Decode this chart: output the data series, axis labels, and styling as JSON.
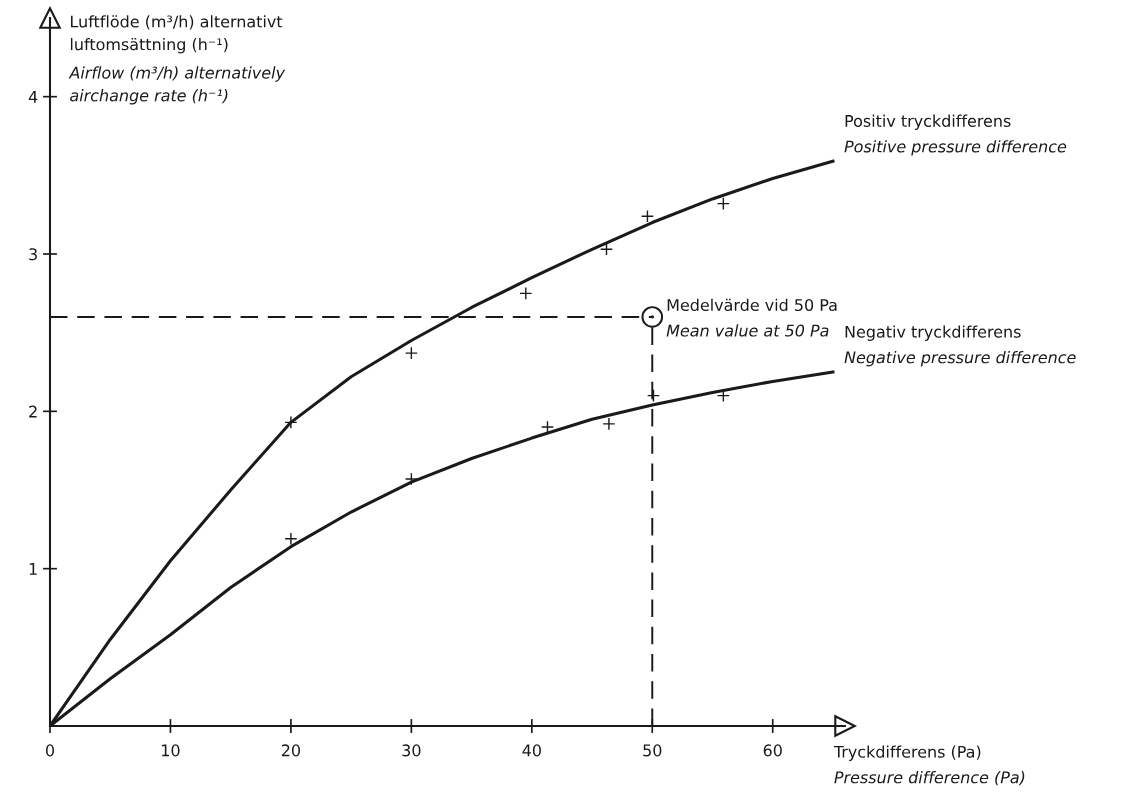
{
  "chart_data": {
    "type": "line",
    "xlabel": "Tryckdifferens (Pa)\nPressure difference (Pa)",
    "ylabel": "Luftflöde (m³/h) alternativt\nluftomsättning (h⁻¹)\nAirflow (m³/h) alternatively\nairchange rate (h⁻¹)",
    "xlim": [
      0,
      66
    ],
    "ylim": [
      0,
      4.5
    ],
    "xticks": [
      0,
      10,
      20,
      30,
      40,
      50,
      60
    ],
    "yticks": [
      1,
      2,
      3,
      4
    ],
    "grid": false,
    "legend": false,
    "series": [
      {
        "name": "Positiv tryckdifferens\nPositive pressure difference",
        "color": "#1a1a1a",
        "x": [
          0,
          5,
          10,
          15,
          20,
          25,
          30,
          35,
          40,
          45,
          50,
          55,
          60,
          65
        ],
        "values": [
          0,
          0.55,
          1.05,
          1.5,
          1.93,
          2.22,
          2.45,
          2.66,
          2.85,
          3.03,
          3.2,
          3.35,
          3.48,
          3.59
        ]
      },
      {
        "name": "Negativ tryckdifferens\nNegative pressure difference",
        "color": "#1a1a1a",
        "x": [
          0,
          5,
          10,
          15,
          20,
          25,
          30,
          35,
          40,
          45,
          50,
          55,
          60,
          65
        ],
        "values": [
          0,
          0.3,
          0.58,
          0.88,
          1.14,
          1.36,
          1.55,
          1.7,
          1.83,
          1.95,
          2.04,
          2.12,
          2.19,
          2.25
        ]
      },
      {
        "type": "scatter",
        "marker": "cross",
        "color": "#1a1a1a",
        "x": [
          20,
          30,
          39.5,
          46.2,
          49.6,
          55.9
        ],
        "values": [
          1.93,
          2.37,
          2.75,
          3.03,
          3.24,
          3.32
        ]
      },
      {
        "type": "scatter",
        "marker": "cross",
        "color": "#1a1a1a",
        "x": [
          20,
          30,
          41.3,
          46.4,
          50.1,
          55.9
        ],
        "values": [
          1.19,
          1.57,
          1.9,
          1.92,
          2.1,
          2.1
        ]
      },
      {
        "type": "scatter",
        "marker": "circle",
        "color": "#1a1a1a",
        "x": [
          50
        ],
        "values": [
          2.6
        ]
      }
    ],
    "ref_lines": [
      {
        "axis": "y",
        "value": 2.6,
        "line_style": "dashed",
        "color": "#1a1a1a"
      },
      {
        "axis": "x",
        "value": 50,
        "line_style": "dashed",
        "color": "#1a1a1a"
      }
    ],
    "annotations": [
      {
        "text": "Medelvärde vid 50 Pa\nMean value at 50 Pa",
        "x": 50,
        "y": 2.6
      }
    ]
  }
}
